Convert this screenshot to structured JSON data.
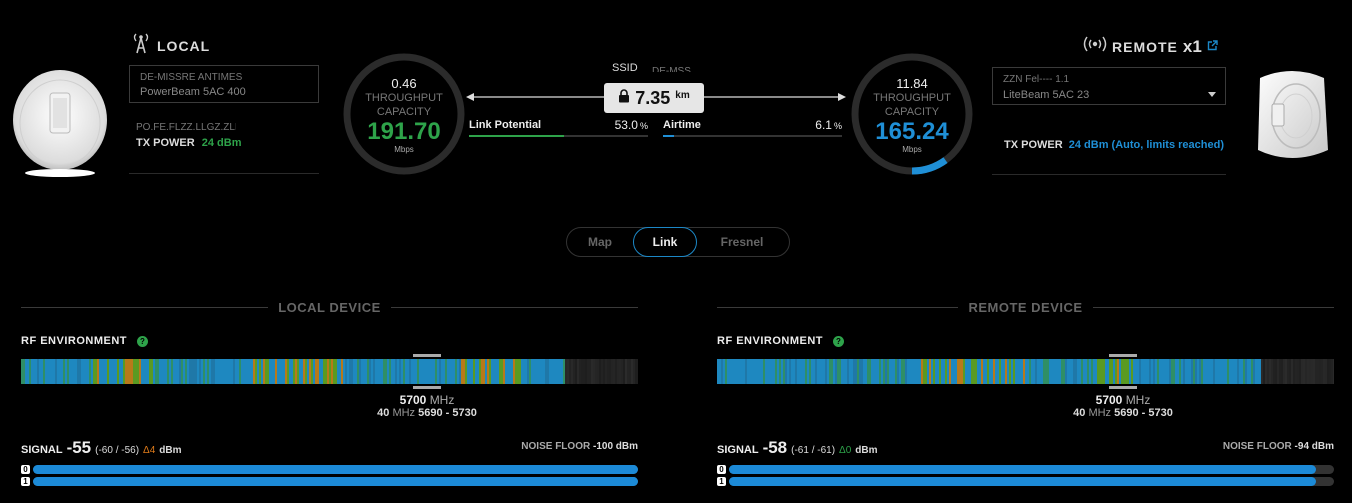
{
  "local": {
    "title": "LOCAL",
    "device_name_obscured": "DE-MISSRE ANTIMES",
    "model": "PowerBeam 5AC 400",
    "ip_obscured": "PO.FE.FLZZ.LLGZ.ZLI",
    "tx_power_label": "TX POWER",
    "tx_power_value": "24 dBm",
    "throughput": "0.46",
    "throughput_label": "THROUGHPUT",
    "capacity_label": "CAPACITY",
    "capacity": "191.70",
    "unit": "Mbps",
    "capacity_fraction": 0.0
  },
  "remote": {
    "title": "REMOTE",
    "count": "x1",
    "device_name_obscured": "ZZN Fel---- 1.1",
    "model": "LiteBeam 5AC 23",
    "tx_power_label": "TX POWER",
    "tx_power_value": "24 dBm (Auto, limits reached)",
    "throughput": "11.84",
    "throughput_label": "THROUGHPUT",
    "capacity_label": "CAPACITY",
    "capacity": "165.24",
    "unit": "Mbps",
    "capacity_fraction": 0.1
  },
  "link": {
    "ssid_label": "SSID",
    "ssid_value_obscured": "DE-MSS",
    "distance": "7.35",
    "distance_unit": "km",
    "link_potential_label": "Link Potential",
    "link_potential_value": "53.0",
    "link_potential_fraction": 0.53,
    "airtime_label": "Airtime",
    "airtime_value": "6.1",
    "airtime_fraction": 0.061,
    "percent": "%"
  },
  "tabs": [
    "Map",
    "Link",
    "Fresnel"
  ],
  "active_tab": "Link",
  "local_section": {
    "title": "LOCAL DEVICE",
    "rf_label": "RF ENVIRONMENT",
    "freq": "5700",
    "freq_unit": "MHz",
    "width": "40",
    "width_unit": "MHz",
    "range": "5690 - 5730",
    "signal_label": "SIGNAL",
    "signal_value": "-55",
    "signal_chains": "(-60 / -56)",
    "delta": "Δ4",
    "delta_color": "#e07b1a",
    "dbm": "dBm",
    "noise_label": "NOISE FLOOR",
    "noise_value": "-100 dBm",
    "chains": [
      {
        "index": "0",
        "fraction": 1.0
      },
      {
        "index": "1",
        "fraction": 1.0
      }
    ]
  },
  "remote_section": {
    "title": "REMOTE DEVICE",
    "rf_label": "RF ENVIRONMENT",
    "freq": "5700",
    "freq_unit": "MHz",
    "width": "40",
    "width_unit": "MHz",
    "range": "5690 - 5730",
    "signal_label": "SIGNAL",
    "signal_value": "-58",
    "signal_chains": "(-61 / -61)",
    "delta": "Δ0",
    "delta_color": "#2ea34a",
    "dbm": "dBm",
    "noise_label": "NOISE FLOOR",
    "noise_value": "-94 dBm",
    "chains": [
      {
        "index": "0",
        "fraction": 0.97
      },
      {
        "index": "1",
        "fraction": 0.97
      }
    ]
  },
  "colors": {
    "accent_blue": "#1c88c7",
    "local_green": "#2ea34a",
    "remote_blue": "#1f8fd6"
  },
  "icons": {
    "local": "antenna-tower-icon",
    "remote": "wireless-broadcast-icon",
    "external": "external-link-icon",
    "lock": "lock-icon",
    "help": "help-icon"
  }
}
